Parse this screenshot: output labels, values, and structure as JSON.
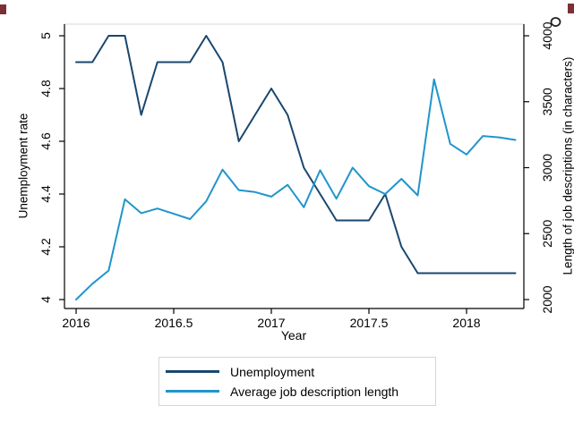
{
  "chart_data": {
    "type": "line",
    "title": "",
    "xlabel": "Year",
    "ylabel_left": "Unemployment rate",
    "ylabel_right": "Length of job descriptions (in characters)",
    "x_start": 2016.0,
    "x_step": "monthly",
    "x_range_drawn": [
      2015.94,
      2018.3
    ],
    "x_ticks": [
      2016,
      2016.5,
      2017,
      2017.5,
      2018
    ],
    "x_tick_labels": [
      "2016",
      "2016.5",
      "2017",
      "2017.5",
      "2018"
    ],
    "left_axis": {
      "range": [
        4,
        5
      ],
      "ticks": [
        4,
        4.2,
        4.4,
        4.6,
        4.8,
        5
      ],
      "tick_labels": [
        "4",
        "4.2",
        "4.4",
        "4.6",
        "4.8",
        "5"
      ]
    },
    "right_axis": {
      "range": [
        2000,
        4000
      ],
      "ticks": [
        2000,
        2500,
        3000,
        3500,
        4000
      ],
      "tick_labels": [
        "2000",
        "2500",
        "3000",
        "3500",
        "4000"
      ]
    },
    "grid": false,
    "legend_position": "bottom-center",
    "series": [
      {
        "name": "Unemployment",
        "axis": "left",
        "color": "#1a476f",
        "values": [
          4.9,
          4.9,
          5.0,
          5.0,
          4.7,
          4.9,
          4.9,
          4.9,
          5.0,
          4.9,
          4.6,
          4.7,
          4.8,
          4.7,
          4.5,
          4.4,
          4.3,
          4.3,
          4.3,
          4.4,
          4.2,
          4.1,
          4.1,
          4.1,
          4.1,
          4.1,
          4.1,
          4.1
        ]
      },
      {
        "name": "Average job description length",
        "axis": "right",
        "color": "#2095cc",
        "values": [
          2000,
          2120,
          2220,
          2760,
          2655,
          2690,
          2650,
          2610,
          2745,
          2985,
          2830,
          2815,
          2780,
          2870,
          2700,
          2980,
          2765,
          3000,
          2860,
          2800,
          2915,
          2790,
          3670,
          3180,
          3100,
          3240,
          3230,
          3210
        ]
      }
    ]
  },
  "artifacts": {
    "corner_mark_color": "#7c2f35",
    "ring_color": "#222222",
    "plot_border_color": "#d9d9d9"
  }
}
